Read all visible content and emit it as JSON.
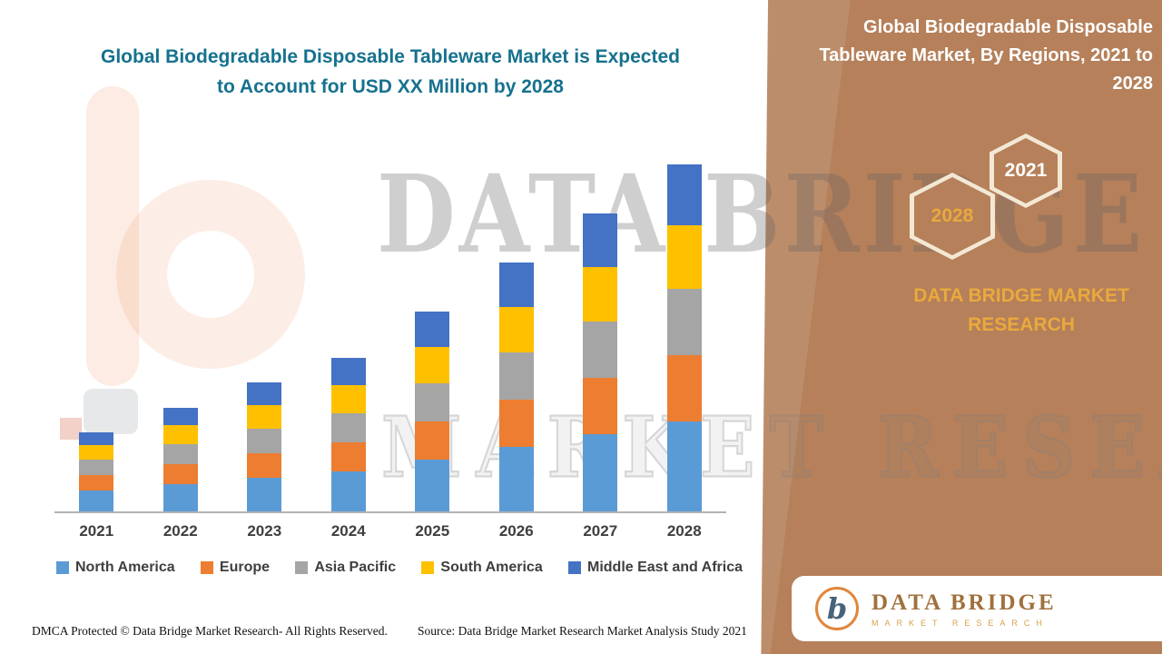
{
  "colors": {
    "panel_brown": "#b5805a",
    "title_teal": "#16718e",
    "gold": "#e9a93d",
    "text_dark": "#3f3f3f"
  },
  "main_title": {
    "line1": "Global Biodegradable Disposable Tableware Market is Expected",
    "line2": "to Account for USD XX Million by 2028"
  },
  "side_panel": {
    "title": "Global Biodegradable Disposable Tableware Market, By Regions, 2021 to 2028",
    "hex_front_label": "2021",
    "hex_back_label": "2028",
    "brand_text": "DATA BRIDGE MARKET RESEARCH"
  },
  "watermark": {
    "line1": "DATA BRIDGE",
    "line2": "MARKET RESEARCH"
  },
  "logo": {
    "mark_letter": "b",
    "name": "DATA BRIDGE",
    "sub": "MARKET RESEARCH"
  },
  "footer": {
    "dmca": "DMCA Protected © Data Bridge Market Research- All Rights Reserved.",
    "source": "Source: Data Bridge Market Research Market Analysis Study 2021"
  },
  "chart_data": {
    "type": "bar",
    "stacked": true,
    "title": "Global Biodegradable Disposable Tableware Market is Expected to Account for USD XX Million by 2028",
    "xlabel": "",
    "ylabel": "",
    "ylim": [
      0,
      40
    ],
    "grid": false,
    "legend_position": "bottom",
    "categories": [
      "2021",
      "2022",
      "2023",
      "2024",
      "2025",
      "2026",
      "2027",
      "2028"
    ],
    "series": [
      {
        "name": "North America",
        "color": "#5b9bd5",
        "values": [
          2.3,
          3.0,
          3.7,
          4.4,
          5.7,
          7.1,
          8.5,
          9.9
        ]
      },
      {
        "name": "Europe",
        "color": "#ed7d31",
        "values": [
          1.7,
          2.2,
          2.7,
          3.2,
          4.2,
          5.2,
          6.2,
          7.3
        ]
      },
      {
        "name": "Asia Pacific",
        "color": "#a5a5a5",
        "values": [
          1.7,
          2.2,
          2.7,
          3.2,
          4.2,
          5.2,
          6.2,
          7.3
        ]
      },
      {
        "name": "South America",
        "color": "#ffc000",
        "values": [
          1.6,
          2.1,
          2.6,
          3.1,
          4.0,
          5.0,
          6.0,
          7.0
        ]
      },
      {
        "name": "Middle East and Africa",
        "color": "#4472c4",
        "values": [
          1.4,
          1.9,
          2.5,
          3.0,
          3.9,
          4.9,
          5.9,
          6.7
        ]
      }
    ],
    "totals": [
      8.7,
      11.4,
      14.2,
      16.9,
      22.0,
      27.4,
      32.8,
      38.2
    ]
  }
}
